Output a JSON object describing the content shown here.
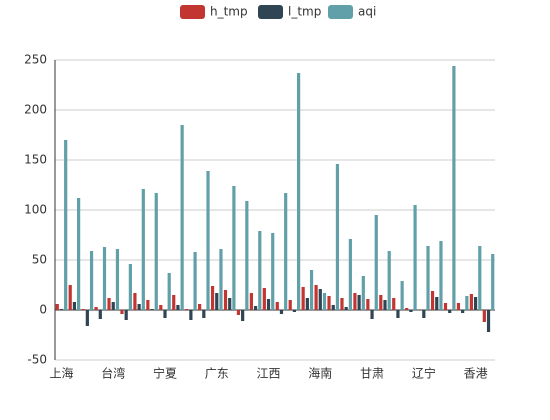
{
  "chart_data": {
    "type": "bar",
    "categories": [
      "上海",
      null,
      null,
      null,
      "台湾",
      null,
      null,
      null,
      "宁夏",
      null,
      null,
      null,
      "广东",
      null,
      null,
      null,
      "江西",
      null,
      null,
      null,
      "海南",
      null,
      null,
      null,
      "甘肃",
      null,
      null,
      null,
      "辽宁",
      null,
      null,
      null,
      "香港",
      null
    ],
    "series": [
      {
        "name": "h_tmp",
        "color": "#c23531",
        "values": [
          6,
          25,
          1,
          3,
          12,
          -4,
          17,
          10,
          5,
          15,
          1,
          6,
          24,
          20,
          -5,
          17,
          22,
          8,
          10,
          23,
          25,
          14,
          12,
          17,
          11,
          15,
          12,
          2,
          0,
          19,
          7,
          7,
          16,
          -12
        ]
      },
      {
        "name": "l_tmp",
        "color": "#2f4554",
        "values": [
          1,
          8,
          -16,
          -9,
          8,
          -10,
          6,
          1,
          -8,
          5,
          -10,
          -8,
          17,
          12,
          -11,
          4,
          11,
          -4,
          -2,
          12,
          21,
          5,
          3,
          15,
          -9,
          10,
          -8,
          -2,
          -8,
          13,
          -3,
          -3,
          13,
          -22
        ]
      },
      {
        "name": "aqi",
        "color": "#61a0a8",
        "values": [
          170,
          112,
          59,
          63,
          61,
          46,
          121,
          117,
          37,
          185,
          58,
          139,
          61,
          124,
          109,
          79,
          77,
          117,
          237,
          40,
          17,
          146,
          71,
          34,
          95,
          59,
          29,
          105,
          64,
          69,
          244,
          14,
          64,
          56
        ]
      }
    ],
    "ylim": [
      -50,
      250
    ],
    "yticks": [
      -50,
      0,
      50,
      100,
      150,
      200,
      250
    ],
    "grid": true,
    "legend": "top"
  }
}
